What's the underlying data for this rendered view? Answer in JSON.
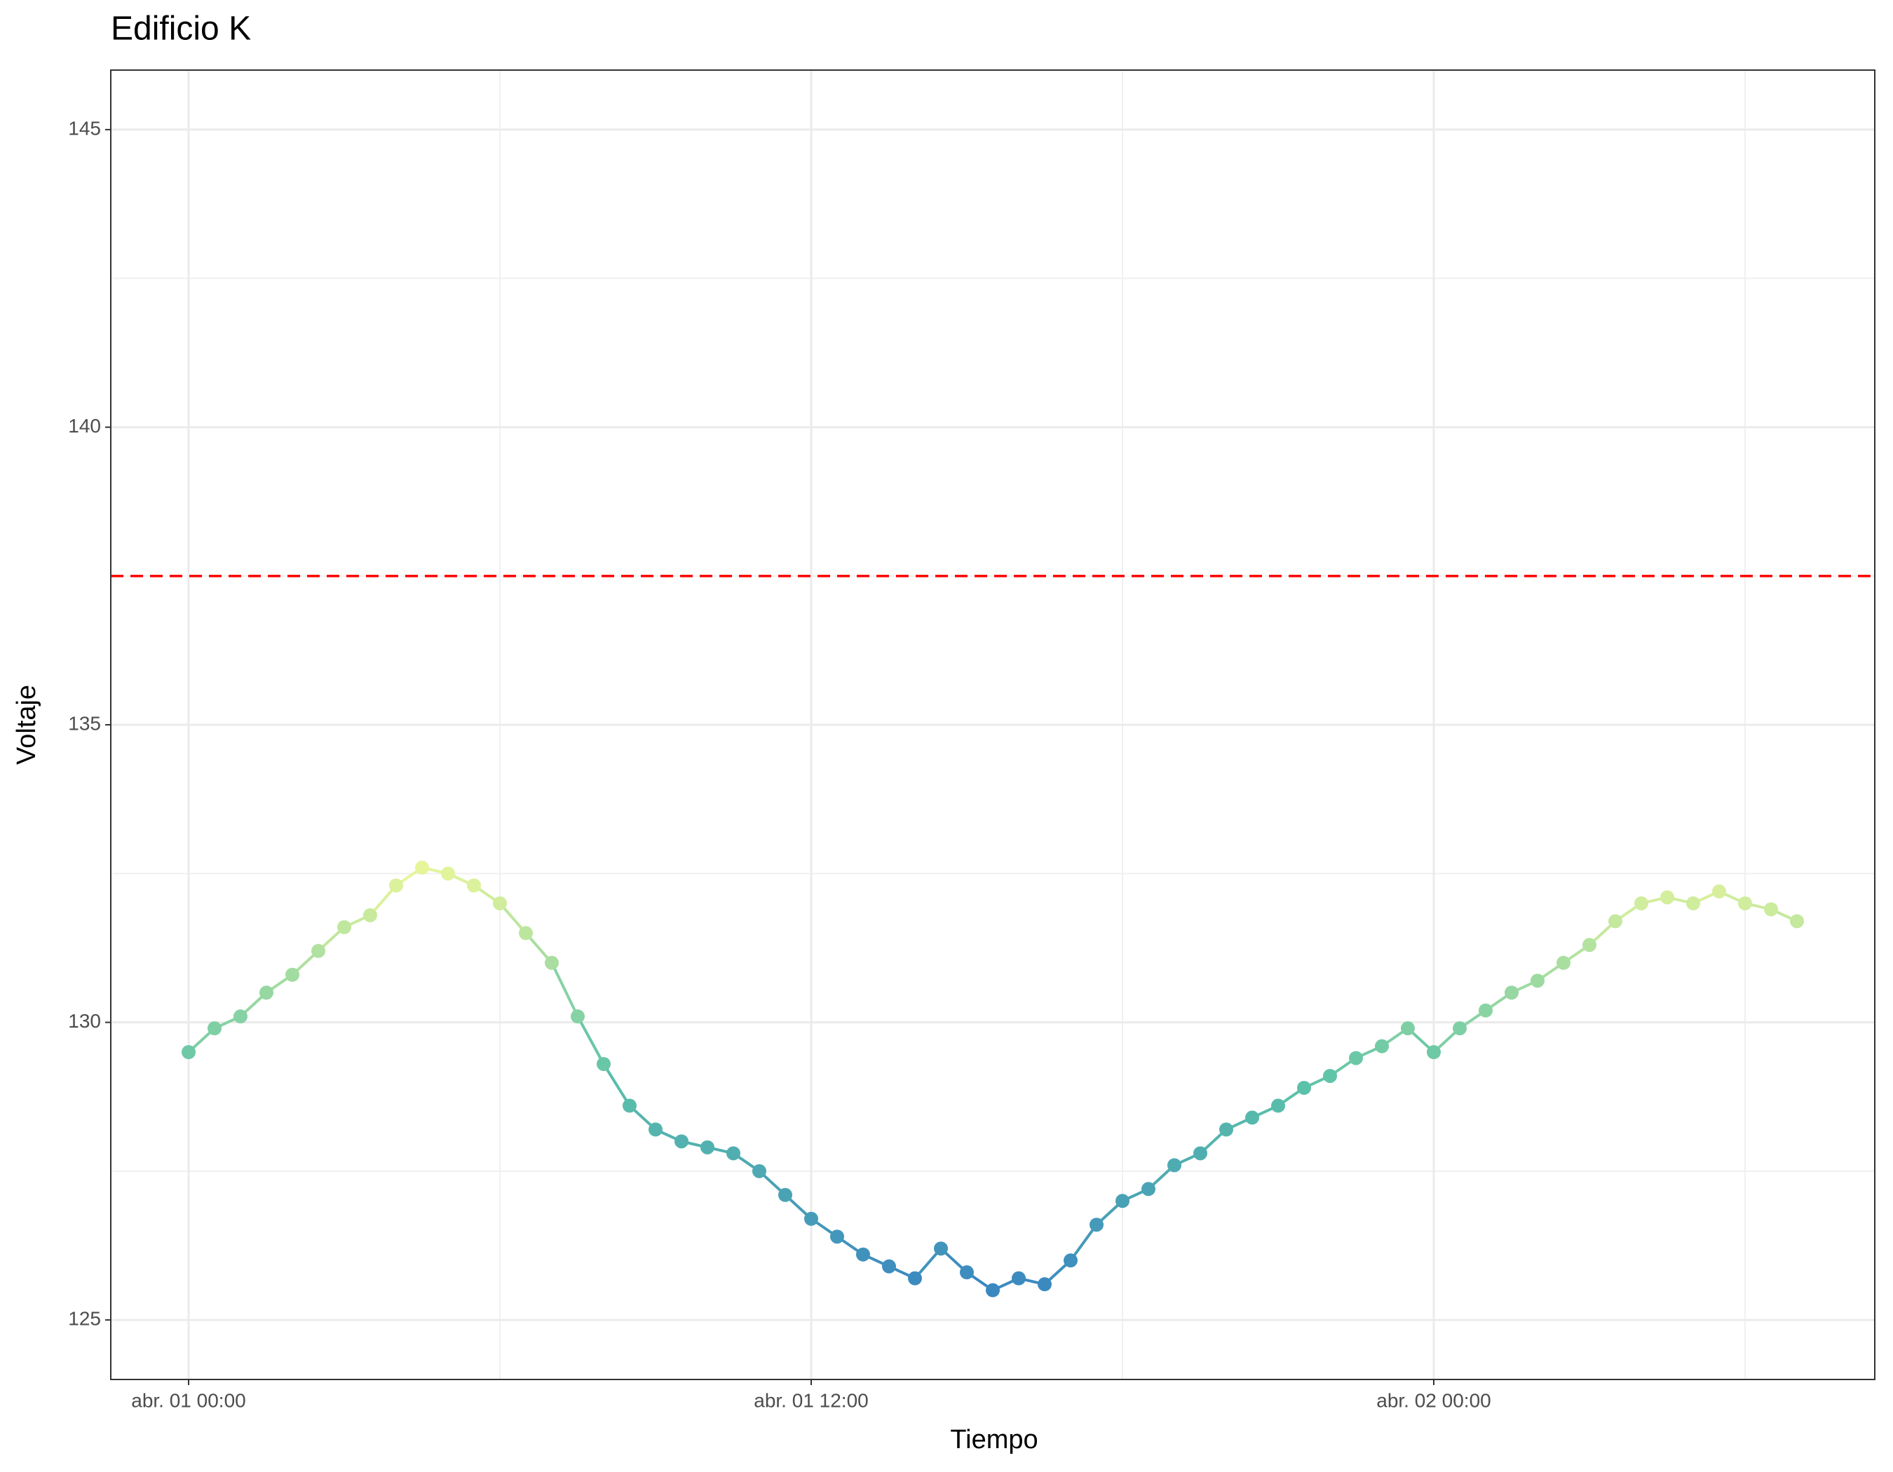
{
  "chart_data": {
    "type": "scatter",
    "title": "Edificio K",
    "x_label": "Tiempo",
    "y_label": "Voltaje",
    "x": [
      "abr. 01 00:00",
      "abr. 01 00:30",
      "abr. 01 01:00",
      "abr. 01 01:30",
      "abr. 01 02:00",
      "abr. 01 02:30",
      "abr. 01 03:00",
      "abr. 01 03:30",
      "abr. 01 04:00",
      "abr. 01 04:30",
      "abr. 01 05:00",
      "abr. 01 05:30",
      "abr. 01 06:00",
      "abr. 01 06:30",
      "abr. 01 07:00",
      "abr. 01 07:30",
      "abr. 01 08:00",
      "abr. 01 08:30",
      "abr. 01 09:00",
      "abr. 01 09:30",
      "abr. 01 10:00",
      "abr. 01 10:30",
      "abr. 01 11:00",
      "abr. 01 11:30",
      "abr. 01 12:00",
      "abr. 01 12:30",
      "abr. 01 13:00",
      "abr. 01 13:30",
      "abr. 01 14:00",
      "abr. 01 14:30",
      "abr. 01 15:00",
      "abr. 01 15:30",
      "abr. 01 16:00",
      "abr. 01 16:30",
      "abr. 01 17:00",
      "abr. 01 17:30",
      "abr. 01 18:00",
      "abr. 01 18:30",
      "abr. 01 19:00",
      "abr. 01 19:30",
      "abr. 01 20:00",
      "abr. 01 20:30",
      "abr. 01 21:00",
      "abr. 01 21:30",
      "abr. 01 22:00",
      "abr. 01 22:30",
      "abr. 01 23:00",
      "abr. 01 23:30",
      "abr. 02 00:00",
      "abr. 02 00:30",
      "abr. 02 01:00",
      "abr. 02 01:30",
      "abr. 02 02:00",
      "abr. 02 02:30",
      "abr. 02 03:00",
      "abr. 02 03:30",
      "abr. 02 04:00",
      "abr. 02 04:30",
      "abr. 02 05:00",
      "abr. 02 05:30",
      "abr. 02 06:00",
      "abr. 02 06:30",
      "abr. 02 07:00"
    ],
    "values": [
      129.5,
      129.9,
      130.1,
      130.5,
      130.8,
      131.2,
      131.6,
      131.8,
      132.3,
      132.6,
      132.5,
      132.3,
      132.0,
      131.5,
      131.0,
      130.1,
      129.3,
      128.6,
      128.2,
      128.0,
      127.9,
      127.8,
      127.5,
      127.1,
      126.7,
      126.4,
      126.1,
      125.9,
      125.7,
      126.2,
      125.8,
      125.5,
      125.7,
      125.6,
      126.0,
      126.6,
      127.0,
      127.2,
      127.6,
      127.8,
      128.2,
      128.4,
      128.6,
      128.9,
      129.1,
      129.4,
      129.6,
      129.9,
      129.5,
      129.9,
      130.2,
      130.5,
      130.7,
      131.0,
      131.3,
      131.7,
      132.0,
      132.1,
      132.0,
      132.2,
      132.0,
      131.9,
      131.7
    ],
    "color_scale": [
      "#3a88c0",
      "#5ec3a8",
      "#e6f59a"
    ],
    "hline": {
      "value": 137.5,
      "color": "#ff0000"
    },
    "xlim": [
      "mar. 31 22:30",
      "abr. 02 08:30"
    ],
    "xticks": [
      "abr. 01 00:00",
      "abr. 01 12:00",
      "abr. 02 00:00"
    ],
    "ylim": [
      124,
      146
    ],
    "yticks": [
      125,
      130,
      135,
      140,
      145
    ],
    "grid": true
  }
}
